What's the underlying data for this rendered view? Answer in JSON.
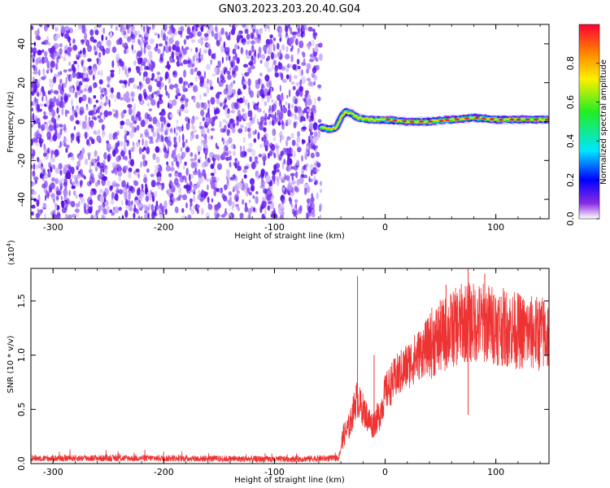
{
  "title": "GN03.2023.203.20.40.G04",
  "colors": {
    "snr_line": "#ee3333",
    "spectrum_noise": "#6a1ff0",
    "ridge_core": "#ee2244"
  },
  "chart_data": [
    {
      "type": "heatmap",
      "title": "GN03.2023.203.20.40.G04",
      "xlabel": "Height of straight line (km)",
      "ylabel": "Frequency (Hz)",
      "xlim": [
        -320,
        148
      ],
      "ylim": [
        -50,
        50
      ],
      "x_ticks": [
        "-300",
        "-200",
        "-100",
        "0",
        "100"
      ],
      "y_ticks": [
        "-40",
        "-20",
        "0",
        "20",
        "40"
      ],
      "noise_region_x": [
        -320,
        -58
      ],
      "ridge": [
        {
          "x": -58,
          "y": -3
        },
        {
          "x": -50,
          "y": -4
        },
        {
          "x": -44,
          "y": -3
        },
        {
          "x": -40,
          "y": 2
        },
        {
          "x": -36,
          "y": 5
        },
        {
          "x": -30,
          "y": 4
        },
        {
          "x": -25,
          "y": 2
        },
        {
          "x": -15,
          "y": 1
        },
        {
          "x": 0,
          "y": 1
        },
        {
          "x": 20,
          "y": 0
        },
        {
          "x": 40,
          "y": 0
        },
        {
          "x": 60,
          "y": 1
        },
        {
          "x": 80,
          "y": 2
        },
        {
          "x": 100,
          "y": 1
        },
        {
          "x": 120,
          "y": 1
        },
        {
          "x": 148,
          "y": 1
        }
      ],
      "colorbar": {
        "label": "Normalized spectral amplitude",
        "ticks": [
          "0.0",
          "0.2",
          "0.4",
          "0.6",
          "0.8"
        ],
        "range": [
          0,
          1
        ]
      }
    },
    {
      "type": "line",
      "xlabel": "Height of straight line (km)",
      "ylabel": "SNR (10 * v/v)",
      "y_multiplier": "(x10",
      "y_multiplier_exp": "4",
      "xlim": [
        -320,
        148
      ],
      "ylim": [
        0,
        1.8
      ],
      "x_ticks": [
        "-300",
        "-200",
        "-100",
        "0",
        "100"
      ],
      "y_ticks": [
        "0.0",
        "0.5",
        "1.0",
        "1.5"
      ],
      "profile": [
        {
          "x": -320,
          "y": 0.05
        },
        {
          "x": -200,
          "y": 0.05
        },
        {
          "x": -100,
          "y": 0.04
        },
        {
          "x": -42,
          "y": 0.05
        },
        {
          "x": -38,
          "y": 0.25
        },
        {
          "x": -32,
          "y": 0.35
        },
        {
          "x": -26,
          "y": 0.6
        },
        {
          "x": -20,
          "y": 0.5
        },
        {
          "x": -12,
          "y": 0.35
        },
        {
          "x": -5,
          "y": 0.45
        },
        {
          "x": 0,
          "y": 0.65
        },
        {
          "x": 10,
          "y": 0.8
        },
        {
          "x": 25,
          "y": 0.95
        },
        {
          "x": 40,
          "y": 1.1
        },
        {
          "x": 55,
          "y": 1.2
        },
        {
          "x": 70,
          "y": 1.3
        },
        {
          "x": 90,
          "y": 1.3
        },
        {
          "x": 110,
          "y": 1.25
        },
        {
          "x": 130,
          "y": 1.2
        },
        {
          "x": 148,
          "y": 1.2
        }
      ],
      "spikes": [
        {
          "x": -25,
          "y": 1.73
        },
        {
          "x": -10,
          "y": 1.0
        },
        {
          "x": 55,
          "y": 1.65
        },
        {
          "x": 75,
          "y": 1.8
        },
        {
          "x": 90,
          "y": 1.75
        },
        {
          "x": 75,
          "y": 0.45
        }
      ]
    }
  ]
}
